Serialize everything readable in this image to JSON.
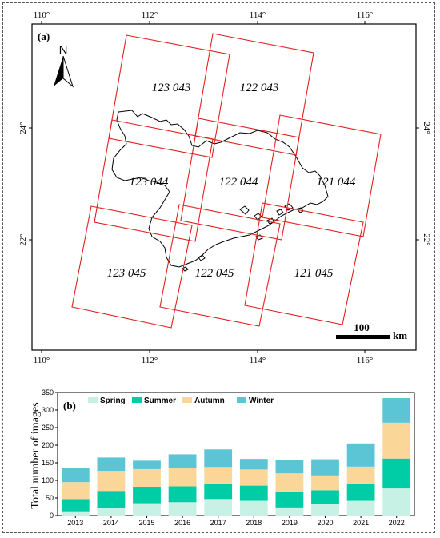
{
  "map": {
    "panel_label": "(a)",
    "lon_ticks": [
      "110°",
      "112°",
      "114°",
      "116°"
    ],
    "lat_ticks": [
      "24°",
      "22°"
    ],
    "north_label": "N",
    "scale_value": "100",
    "scale_unit": "km",
    "tiles": [
      "123 043",
      "122 043",
      "123 044",
      "122 044",
      "121 044",
      "123 045",
      "122 045",
      "121 045"
    ],
    "colors": {
      "tile_border": "#e0201f",
      "coastline": "#000000"
    }
  },
  "chart_data": {
    "type": "bar",
    "stacked": true,
    "panel_label": "(b)",
    "title": "",
    "xlabel": "",
    "ylabel": "Total number of images",
    "ylim": [
      0,
      350
    ],
    "yticks": [
      0,
      50,
      100,
      150,
      200,
      250,
      300,
      350
    ],
    "categories": [
      "2013",
      "2014",
      "2015",
      "2016",
      "2017",
      "2018",
      "2019",
      "2020",
      "2021",
      "2022"
    ],
    "series": [
      {
        "name": "Spring",
        "color": "#c8f1e5",
        "values": [
          12,
          22,
          35,
          38,
          47,
          42,
          23,
          32,
          42,
          77
        ]
      },
      {
        "name": "Summer",
        "color": "#00cca6",
        "values": [
          35,
          48,
          47,
          45,
          42,
          43,
          43,
          40,
          47,
          85
        ]
      },
      {
        "name": "Autumn",
        "color": "#fbd699",
        "values": [
          48,
          57,
          50,
          51,
          49,
          46,
          54,
          42,
          50,
          102
        ]
      },
      {
        "name": "Winter",
        "color": "#5bc5d6",
        "values": [
          40,
          38,
          24,
          40,
          50,
          30,
          37,
          46,
          66,
          70
        ]
      }
    ],
    "legend_position": "top"
  }
}
